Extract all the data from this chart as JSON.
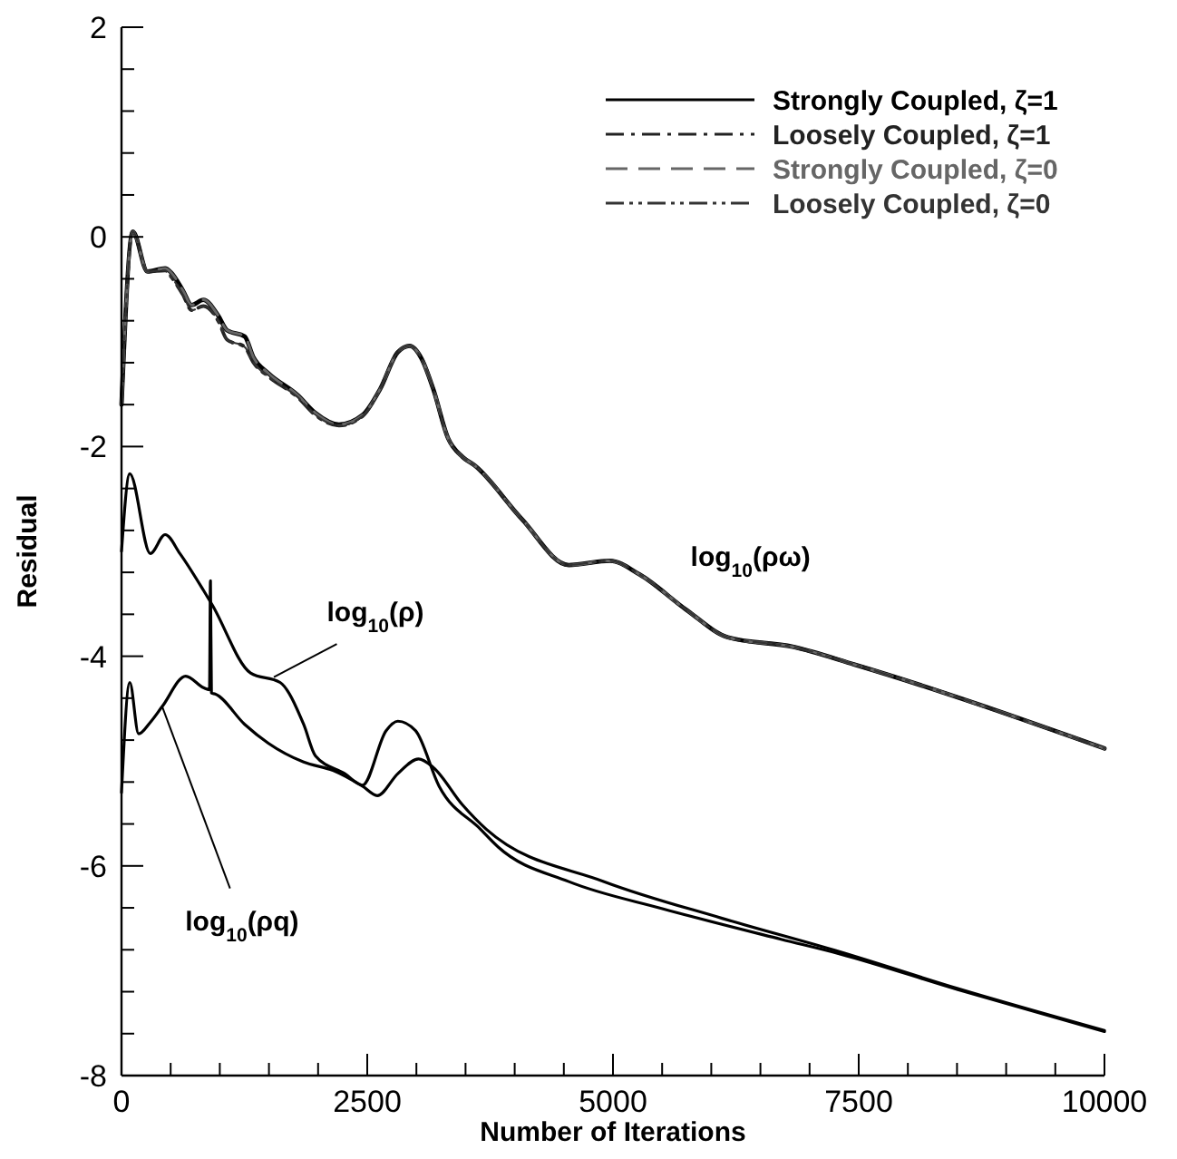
{
  "chart_data": {
    "type": "line",
    "xlabel": "Number of Iterations",
    "ylabel": "Residual",
    "xlim": [
      0,
      10000
    ],
    "ylim": [
      -8,
      2
    ],
    "xticks": [
      0,
      {
        "value": 500,
        "label": null
      },
      {
        "value": 1000,
        "label": null
      },
      {
        "value": 1500,
        "label": null
      },
      {
        "value": 2000,
        "label": null
      },
      2500,
      {
        "value": 3000,
        "label": null
      },
      {
        "value": 3500,
        "label": null
      },
      {
        "value": 4000,
        "label": null
      },
      {
        "value": 4500,
        "label": null
      },
      5000,
      {
        "value": 5500,
        "label": null
      },
      {
        "value": 6000,
        "label": null
      },
      {
        "value": 6500,
        "label": null
      },
      {
        "value": 7000,
        "label": null
      },
      7500,
      {
        "value": 8000,
        "label": null
      },
      {
        "value": 8500,
        "label": null
      },
      {
        "value": 9000,
        "label": null
      },
      {
        "value": 9500,
        "label": null
      },
      10000
    ],
    "yticks": [
      -8,
      {
        "value": -7.6,
        "label": null
      },
      {
        "value": -7.2,
        "label": null
      },
      {
        "value": -6.8,
        "label": null
      },
      {
        "value": -6.4,
        "label": null
      },
      -6,
      {
        "value": -5.6,
        "label": null
      },
      {
        "value": -5.2,
        "label": null
      },
      {
        "value": -4.8,
        "label": null
      },
      {
        "value": -4.4,
        "label": null
      },
      -4,
      {
        "value": -3.6,
        "label": null
      },
      {
        "value": -3.2,
        "label": null
      },
      {
        "value": -2.8,
        "label": null
      },
      {
        "value": -2.4,
        "label": null
      },
      -2,
      {
        "value": -1.6,
        "label": null
      },
      {
        "value": -1.2,
        "label": null
      },
      {
        "value": -0.8,
        "label": null
      },
      {
        "value": -0.4,
        "label": null
      },
      0,
      {
        "value": 0.4,
        "label": null
      },
      {
        "value": 0.8,
        "label": null
      },
      {
        "value": 1.2,
        "label": null
      },
      {
        "value": 1.6,
        "label": null
      },
      2
    ],
    "legend": "top right",
    "series": [
      {
        "name": "Strongly Coupled, ζ=1",
        "color": "#000000",
        "line_style": "solid",
        "x": [
          0,
          115,
          264,
          444,
          504,
          624,
          714,
          833,
          983,
          1073,
          1253,
          1343,
          1493,
          1793,
          1973,
          2212,
          2452,
          2632,
          2811,
          2932,
          3052,
          3171,
          3322,
          3471,
          3592,
          4071,
          4550,
          4970,
          5270,
          5750,
          6169,
          6829,
          7459,
          10000
        ],
        "values": [
          -1.6,
          0.05,
          -0.33,
          -0.3,
          -0.34,
          -0.51,
          -0.65,
          -0.6,
          -0.75,
          -0.89,
          -0.95,
          -1.15,
          -1.3,
          -1.51,
          -1.68,
          -1.79,
          -1.7,
          -1.45,
          -1.1,
          -1.04,
          -1.16,
          -1.45,
          -1.92,
          -2.1,
          -2.18,
          -2.69,
          -3.13,
          -3.09,
          -3.22,
          -3.56,
          -3.82,
          -3.91,
          -4.08,
          -4.88
        ]
      },
      {
        "name": "Loosely Coupled, ζ=1",
        "color": "#222222",
        "line_style": "dashdot",
        "x": [
          0,
          115,
          264,
          444,
          504,
          624,
          714,
          833,
          983,
          1073,
          1253,
          1343,
          1493,
          1793,
          1973,
          2212,
          2452,
          2632,
          2811,
          2932,
          3052,
          3171,
          3322,
          3471,
          3592,
          4071,
          4550,
          4970,
          5270,
          5750,
          6169,
          6829,
          7459,
          10000
        ],
        "values": [
          -1.6,
          0.05,
          -0.33,
          -0.32,
          -0.38,
          -0.55,
          -0.7,
          -0.66,
          -0.8,
          -0.98,
          -1.05,
          -1.2,
          -1.33,
          -1.53,
          -1.7,
          -1.8,
          -1.71,
          -1.45,
          -1.1,
          -1.04,
          -1.16,
          -1.45,
          -1.92,
          -2.1,
          -2.18,
          -2.69,
          -3.13,
          -3.09,
          -3.22,
          -3.56,
          -3.82,
          -3.91,
          -4.08,
          -4.88
        ]
      },
      {
        "name": "Strongly Coupled, ζ=0",
        "color": "#666666",
        "line_style": "dashed",
        "x": [
          0,
          115,
          264,
          444,
          504,
          624,
          714,
          833,
          983,
          1073,
          1253,
          1343,
          1493,
          1793,
          1973,
          2212,
          2452,
          2632,
          2811,
          2932,
          3052,
          3171,
          3322,
          3471,
          3592,
          4071,
          4550,
          4970,
          5270,
          5750,
          6169,
          6829,
          7459,
          10000
        ],
        "values": [
          -1.6,
          0.05,
          -0.33,
          -0.3,
          -0.34,
          -0.51,
          -0.65,
          -0.6,
          -0.75,
          -0.89,
          -0.95,
          -1.15,
          -1.3,
          -1.51,
          -1.68,
          -1.79,
          -1.7,
          -1.45,
          -1.1,
          -1.04,
          -1.16,
          -1.45,
          -1.92,
          -2.1,
          -2.18,
          -2.69,
          -3.13,
          -3.09,
          -3.22,
          -3.56,
          -3.82,
          -3.91,
          -4.08,
          -4.88
        ]
      },
      {
        "name": "Loosely Coupled, ζ=0",
        "color": "#333333",
        "line_style": "dashdotdot",
        "x": [
          0,
          115,
          264,
          444,
          504,
          624,
          714,
          833,
          983,
          1073,
          1253,
          1343,
          1493,
          1793,
          1973,
          2212,
          2452,
          2632,
          2811,
          2932,
          3052,
          3171,
          3322,
          3471,
          3592,
          4071,
          4550,
          4970,
          5270,
          5750,
          6169,
          6829,
          7459,
          10000
        ],
        "values": [
          -1.6,
          0.05,
          -0.33,
          -0.32,
          -0.38,
          -0.55,
          -0.7,
          -0.66,
          -0.8,
          -0.98,
          -1.05,
          -1.2,
          -1.33,
          -1.53,
          -1.7,
          -1.8,
          -1.71,
          -1.45,
          -1.1,
          -1.04,
          -1.16,
          -1.45,
          -1.92,
          -2.1,
          -2.18,
          -2.69,
          -3.13,
          -3.09,
          -3.22,
          -3.56,
          -3.82,
          -3.91,
          -4.08,
          -4.88
        ]
      },
      {
        "color": "#000000",
        "line_style": "solid",
        "x": [
          0,
          84,
          293,
          444,
          594,
          833,
          923,
          1313,
          1613,
          1853,
          1973,
          2272,
          2452,
          2692,
          2811,
          2991,
          3231,
          3652,
          3832,
          4551,
          5511,
          6710,
          7309,
          8508,
          10000
        ],
        "values": [
          -3.0,
          -2.26,
          -3.02,
          -2.84,
          -3.02,
          -3.37,
          -3.51,
          -4.16,
          -4.25,
          -4.65,
          -4.95,
          -5.12,
          -5.23,
          -4.71,
          -4.62,
          -4.71,
          -5.24,
          -5.65,
          -5.82,
          -6.15,
          -6.41,
          -6.7,
          -6.84,
          -7.18,
          -7.58
        ]
      },
      {
        "color": "#000000",
        "line_style": "solid",
        "x": [
          0,
          84,
          174,
          293,
          414,
          653,
          833,
          895,
          905,
          915,
          953,
          1253,
          1493,
          1853,
          2152,
          2452,
          2602,
          2811,
          3022,
          3171,
          3471,
          3711,
          4910,
          6110,
          7309,
          8508,
          10000
        ],
        "values": [
          -5.3,
          -4.25,
          -4.74,
          -4.63,
          -4.48,
          -4.19,
          -4.3,
          -4.32,
          -3.28,
          -4.35,
          -4.36,
          -4.65,
          -4.83,
          -5.01,
          -5.09,
          -5.24,
          -5.33,
          -5.12,
          -4.98,
          -5.06,
          -5.42,
          -5.65,
          -6.15,
          -6.5,
          -6.82,
          -7.17,
          -7.57
        ]
      }
    ],
    "annotations": [
      "log$_{10}$(ρω)",
      {
        "text": "log$_{10}$(ρ)",
        "x": 1550,
        "y": -4.2
      },
      {
        "text": "log$_{10}$(ρq)",
        "x": 414,
        "y": -4.48
      }
    ]
  }
}
